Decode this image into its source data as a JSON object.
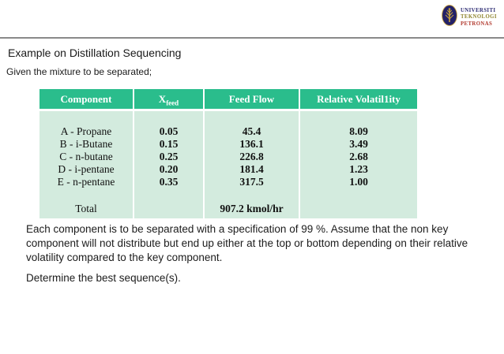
{
  "page": {
    "title": "Example on Distillation Sequencing",
    "subtitle": "Given the mixture to be separated;"
  },
  "logo": {
    "line1": "UNIVERSITI",
    "line2": "TEKNOLOGI",
    "line3": "PETRONAS",
    "colors": {
      "line1_text": "#2b2a72",
      "line2_text": "#8f852f",
      "line3_text": "#b23b30",
      "emblem_bg": "#232168",
      "emblem_gold": "#c9a43c"
    }
  },
  "table": {
    "headers": {
      "component": "Component",
      "xfeed_main": "X",
      "xfeed_sub": "feed",
      "feed_flow": "Feed Flow",
      "volatility": "Relative Volatil1ity"
    },
    "columns": {
      "component": [
        "A - Propane",
        "B - i-Butane",
        "C - n-butane",
        "D - i-pentane",
        "E - n-pentane"
      ],
      "xfeed": [
        "0.05",
        "0.15",
        "0.25",
        "0.20",
        "0.35"
      ],
      "feed_flow": [
        "45.4",
        "136.1",
        "226.8",
        "181.4",
        "317.5"
      ],
      "volatility": [
        "8.09",
        "3.49",
        "2.68",
        "1.23",
        "1.00"
      ]
    },
    "total_label": "Total",
    "total_value": "907.2 kmol/hr",
    "colors": {
      "header_bg": "#2abd8c",
      "header_text": "#ffffff",
      "body_bg": "#d3ebde"
    }
  },
  "body_text": {
    "lines": [
      "Each component is to be separated with a specification of 99 %. Assume that the non key",
      "component will not distribute but end up either at the top or bottom depending on their relative",
      "volatility compared to the key component."
    ],
    "determine": "Determine the best sequence(s)."
  }
}
